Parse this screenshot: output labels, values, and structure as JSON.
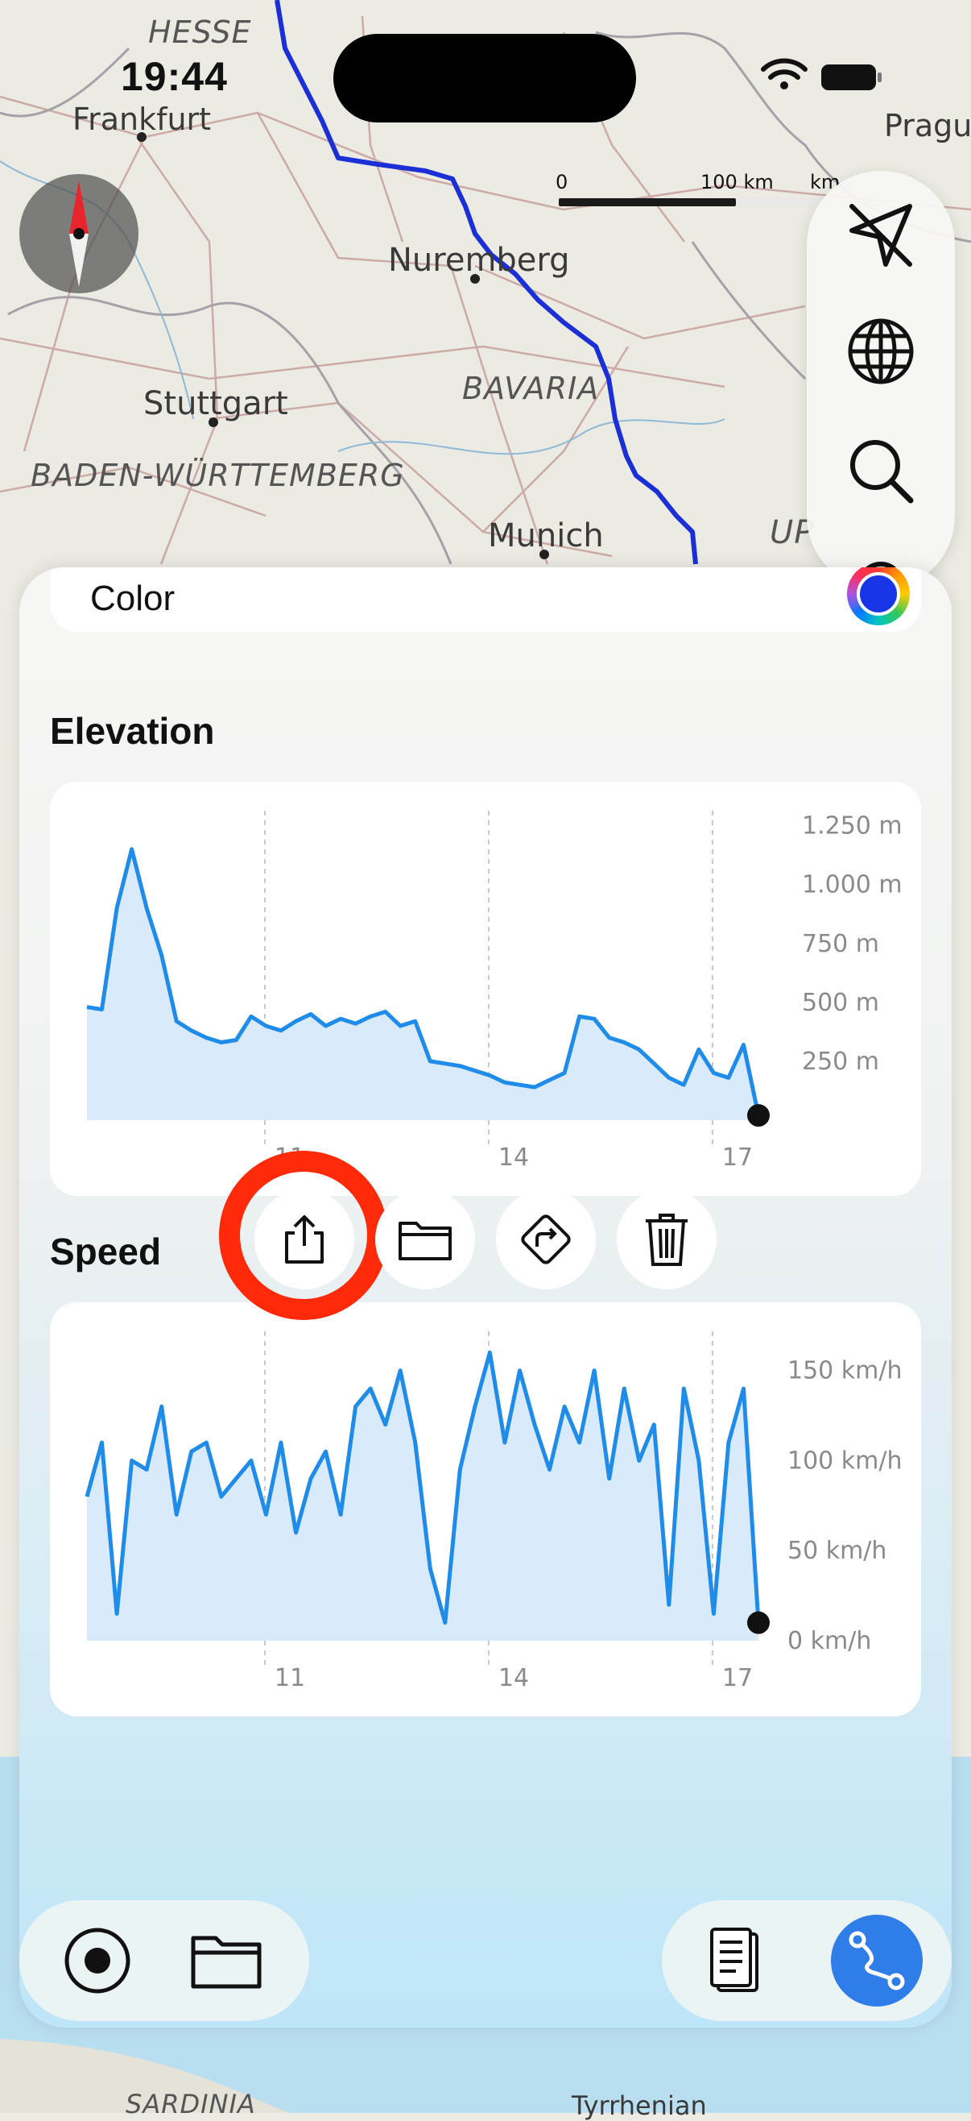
{
  "status_bar": {
    "time": "19:44"
  },
  "map": {
    "labels": {
      "hesse": "HESSE",
      "frankfurt": "Frankfurt",
      "prague": "Pragu",
      "nuremberg": "Nuremberg",
      "bavaria": "BAVARIA",
      "stuttgart": "Stuttgart",
      "baden": "BADEN-WÜRTTEMBERG",
      "munich": "Munich",
      "upper": "UP",
      "sardinia": "SARDINIA",
      "tyrrhenian": "Tyrrhenian"
    },
    "scale": {
      "start": "0",
      "mid": "100 km",
      "end": "km"
    },
    "route_color": "#1a2fd6"
  },
  "toolbar": {
    "icons": [
      "location-arrow-icon",
      "globe-icon",
      "search-icon",
      "gear-icon"
    ]
  },
  "sheet": {
    "color_label": "Color",
    "elevation_title": "Elevation",
    "speed_title": "Speed"
  },
  "chart_data": [
    {
      "type": "area",
      "title": "Elevation",
      "x_ticks": [
        "11",
        "14",
        "17"
      ],
      "y_ticks": [
        "1.250 m",
        "1.000 m",
        "750 m",
        "500 m",
        "250 m"
      ],
      "ylim": [
        0,
        1300
      ],
      "x": [
        8.4,
        8.6,
        8.8,
        9.0,
        9.2,
        9.4,
        9.6,
        9.8,
        10.0,
        10.2,
        10.4,
        10.6,
        10.8,
        11.0,
        11.2,
        11.4,
        11.6,
        11.8,
        12.0,
        12.2,
        12.4,
        12.6,
        12.8,
        13.0,
        13.2,
        13.4,
        13.6,
        13.8,
        14.0,
        14.2,
        14.4,
        14.6,
        14.8,
        15.0,
        15.2,
        15.4,
        15.6,
        15.8,
        16.0,
        16.2,
        16.4,
        16.6,
        16.8,
        17.0,
        17.2,
        17.4
      ],
      "values": [
        480,
        470,
        900,
        1150,
        900,
        700,
        420,
        380,
        350,
        330,
        340,
        440,
        400,
        380,
        420,
        450,
        400,
        430,
        410,
        440,
        460,
        400,
        420,
        250,
        240,
        230,
        210,
        190,
        160,
        150,
        140,
        170,
        200,
        440,
        430,
        350,
        330,
        300,
        240,
        180,
        150,
        300,
        200,
        180,
        320,
        20
      ],
      "color": "#1e8ce8"
    },
    {
      "type": "area",
      "title": "Speed",
      "x_ticks": [
        "11",
        "14",
        "17"
      ],
      "y_ticks": [
        "150 km/h",
        "100 km/h",
        "50 km/h",
        "0 km/h"
      ],
      "ylim": [
        0,
        170
      ],
      "x": [
        8.4,
        8.6,
        8.8,
        9.0,
        9.2,
        9.4,
        9.6,
        9.8,
        10.0,
        10.2,
        10.4,
        10.6,
        10.8,
        11.0,
        11.2,
        11.4,
        11.6,
        11.8,
        12.0,
        12.2,
        12.4,
        12.6,
        12.8,
        13.0,
        13.2,
        13.4,
        13.6,
        13.8,
        14.0,
        14.2,
        14.4,
        14.6,
        14.8,
        15.0,
        15.2,
        15.4,
        15.6,
        15.8,
        16.0,
        16.2,
        16.4,
        16.6,
        16.8,
        17.0,
        17.2,
        17.4
      ],
      "values": [
        80,
        110,
        15,
        100,
        95,
        130,
        70,
        105,
        110,
        80,
        90,
        100,
        70,
        110,
        60,
        90,
        105,
        70,
        130,
        140,
        120,
        150,
        110,
        40,
        10,
        95,
        130,
        160,
        110,
        150,
        120,
        95,
        130,
        110,
        150,
        90,
        140,
        100,
        120,
        20,
        140,
        100,
        15,
        110,
        140,
        10
      ],
      "color": "#1e8ce8"
    }
  ]
}
